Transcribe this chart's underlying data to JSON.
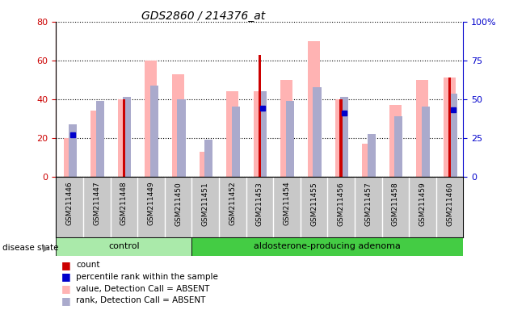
{
  "title": "GDS2860 / 214376_at",
  "samples": [
    "GSM211446",
    "GSM211447",
    "GSM211448",
    "GSM211449",
    "GSM211450",
    "GSM211451",
    "GSM211452",
    "GSM211453",
    "GSM211454",
    "GSM211455",
    "GSM211456",
    "GSM211457",
    "GSM211458",
    "GSM211459",
    "GSM211460"
  ],
  "groups": [
    "control",
    "control",
    "control",
    "control",
    "control",
    "aldosterone-producing adenoma",
    "aldosterone-producing adenoma",
    "aldosterone-producing adenoma",
    "aldosterone-producing adenoma",
    "aldosterone-producing adenoma",
    "aldosterone-producing adenoma",
    "aldosterone-producing adenoma",
    "aldosterone-producing adenoma",
    "aldosterone-producing adenoma",
    "aldosterone-producing adenoma"
  ],
  "count_values": [
    0,
    0,
    40,
    0,
    0,
    0,
    0,
    63,
    0,
    0,
    40,
    0,
    0,
    0,
    51
  ],
  "value_absent": [
    20,
    34,
    40,
    60,
    53,
    13,
    44,
    44,
    50,
    70,
    40,
    17,
    37,
    50,
    51
  ],
  "rank_absent": [
    27,
    39,
    41,
    47,
    40,
    19,
    36,
    44,
    39,
    46,
    41,
    22,
    31,
    36,
    43
  ],
  "percentile_rank": [
    27,
    0,
    0,
    0,
    0,
    0,
    0,
    44,
    0,
    0,
    41,
    0,
    0,
    0,
    43
  ],
  "has_percentile": [
    true,
    false,
    false,
    false,
    false,
    false,
    false,
    true,
    false,
    false,
    true,
    false,
    false,
    false,
    true
  ],
  "ylim_left": [
    0,
    80
  ],
  "ylim_right": [
    0,
    100
  ],
  "left_ticks": [
    0,
    20,
    40,
    60,
    80
  ],
  "right_ticks": [
    0,
    25,
    50,
    75,
    100
  ],
  "right_tick_labels": [
    "0",
    "25",
    "50",
    "75",
    "100%"
  ],
  "n_control": 5,
  "control_label": "control",
  "adenoma_label": "aldosterone-producing adenoma",
  "disease_state_label": "disease state",
  "count_color": "#cc0000",
  "value_absent_color": "#ffb3b3",
  "rank_absent_color": "#aaaacc",
  "percentile_color": "#0000cc",
  "bg_color": "#ffffff",
  "control_bg": "#aaeaaa",
  "adenoma_bg": "#44cc44"
}
